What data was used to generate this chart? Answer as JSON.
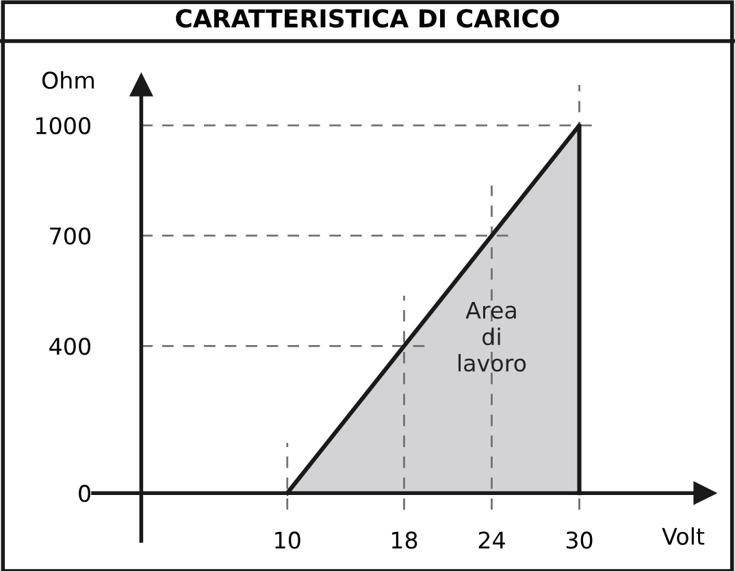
{
  "chart_data": {
    "type": "area",
    "title": "CARATTERISTICA DI CARICO",
    "xlabel": "Volt",
    "ylabel": "Ohm",
    "x": [
      10,
      18,
      24,
      30
    ],
    "series": [
      {
        "color": "#d3d3d5",
        "values": [
          0,
          400,
          700,
          1000
        ]
      }
    ],
    "xlim": [
      -3.3,
      38.6
    ],
    "ylim": [
      -130,
      1110
    ],
    "xticks": [
      10,
      18,
      24,
      30
    ],
    "yticks": [
      0,
      400,
      700,
      1000
    ],
    "ref_lines": [
      {
        "axis": "y",
        "value": 400,
        "color": "#707070",
        "line_style": "dashed"
      },
      {
        "axis": "y",
        "value": 700,
        "color": "#707070",
        "line_style": "dashed"
      },
      {
        "axis": "y",
        "value": 1000,
        "color": "#707070",
        "line_style": "dashed"
      },
      {
        "axis": "x",
        "value": 10,
        "color": "#707070",
        "line_style": "dashed"
      },
      {
        "axis": "x",
        "value": 18,
        "color": "#707070",
        "line_style": "dashed"
      },
      {
        "axis": "x",
        "value": 24,
        "color": "#707070",
        "line_style": "dashed"
      },
      {
        "axis": "x",
        "value": 30,
        "color": "#707070",
        "line_style": "dashed"
      }
    ],
    "annotations": [
      {
        "text": "Area\ndi\nlavoro",
        "x": 24,
        "y": 420
      }
    ],
    "grid": false
  }
}
